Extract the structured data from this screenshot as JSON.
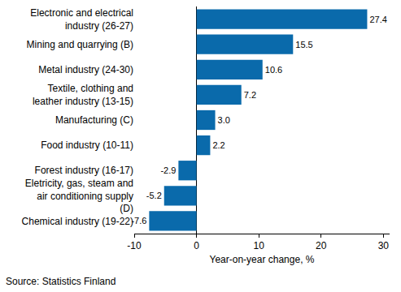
{
  "chart_data": {
    "type": "bar",
    "orientation": "horizontal",
    "categories": [
      "Electronic and electrical industry (26-27)",
      "Mining and quarrying (B)",
      "Metal industry (24-30)",
      "Textile, clothing and leather industry (13-15)",
      "Manufacturing (C)",
      "Food industry (10-11)",
      "Forest industry (16-17)",
      "Eletricity, gas, steam and air conditioning supply (D)",
      "Chemical industry (19-22)"
    ],
    "values": [
      27.4,
      15.5,
      10.6,
      7.2,
      3.0,
      2.2,
      -2.9,
      -5.2,
      -7.6
    ],
    "value_labels": [
      "27.4",
      "15.5",
      "10.6",
      "7.2",
      "3.0",
      "2.2",
      "-2.9",
      "-5.2",
      "-7.6"
    ],
    "color": "#0a6aab",
    "xlabel": "Year-on-year change, %",
    "xlim": [
      -10,
      31
    ],
    "xticks": [
      -10,
      0,
      10,
      20,
      30
    ],
    "grid": false,
    "data_labels": true,
    "source": "Source: Statistics Finland"
  }
}
